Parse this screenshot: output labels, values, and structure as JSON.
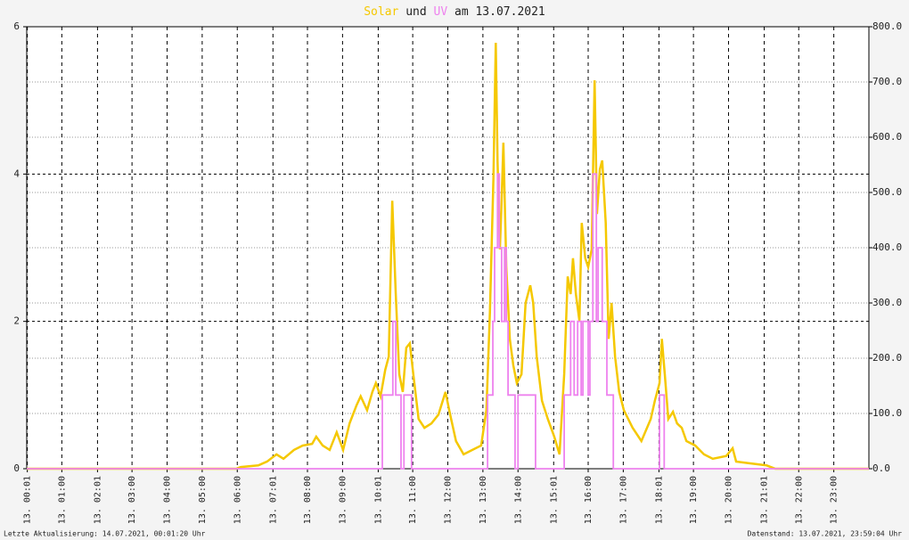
{
  "chart_data": {
    "type": "line",
    "title": {
      "parts": [
        "Solar",
        "und",
        "UV",
        "am 13.07.2021"
      ]
    },
    "footer": {
      "left": "Letzte Aktualisierung: 14.07.2021, 00:01:20 Uhr",
      "right": "Datenstand: 13.07.2021, 23:59:04 Uhr"
    },
    "xlim": [
      0,
      1440
    ],
    "xticks": [
      {
        "value": 1,
        "label": "13. 00:01"
      },
      {
        "value": 60,
        "label": "13. 01:00"
      },
      {
        "value": 121,
        "label": "13. 02:01"
      },
      {
        "value": 180,
        "label": "13. 03:00"
      },
      {
        "value": 240,
        "label": "13. 04:00"
      },
      {
        "value": 300,
        "label": "13. 05:00"
      },
      {
        "value": 360,
        "label": "13. 06:00"
      },
      {
        "value": 421,
        "label": "13. 07:01"
      },
      {
        "value": 480,
        "label": "13. 08:00"
      },
      {
        "value": 540,
        "label": "13. 09:00"
      },
      {
        "value": 601,
        "label": "13. 10:01"
      },
      {
        "value": 660,
        "label": "13. 11:00"
      },
      {
        "value": 720,
        "label": "13. 12:00"
      },
      {
        "value": 780,
        "label": "13. 13:00"
      },
      {
        "value": 840,
        "label": "13. 14:00"
      },
      {
        "value": 901,
        "label": "13. 15:01"
      },
      {
        "value": 960,
        "label": "13. 16:00"
      },
      {
        "value": 1020,
        "label": "13. 17:00"
      },
      {
        "value": 1081,
        "label": "13. 18:01"
      },
      {
        "value": 1140,
        "label": "13. 19:00"
      },
      {
        "value": 1200,
        "label": "13. 20:00"
      },
      {
        "value": 1261,
        "label": "13. 21:01"
      },
      {
        "value": 1320,
        "label": "13. 22:00"
      },
      {
        "value": 1380,
        "label": "13. 23:00"
      }
    ],
    "ylim": [
      0,
      6
    ],
    "yticks": [
      0,
      2,
      4,
      6
    ],
    "y2lim": [
      0,
      800
    ],
    "y2ticks": [
      {
        "value": 0,
        "label": "0.0"
      },
      {
        "value": 100,
        "label": "100.0"
      },
      {
        "value": 200,
        "label": "200.0"
      },
      {
        "value": 300,
        "label": "300.0"
      },
      {
        "value": 400,
        "label": "400.0"
      },
      {
        "value": 500,
        "label": "500.0"
      },
      {
        "value": 600,
        "label": "600.0"
      },
      {
        "value": 700,
        "label": "700.0"
      },
      {
        "value": 800,
        "label": "800.0"
      }
    ],
    "grid": true,
    "series": [
      {
        "name": "Solar",
        "color": "#f5c800",
        "axis": "y2",
        "x": [
          0,
          358,
          366,
          396,
          411,
          427,
          439,
          457,
          472,
          488,
          495,
          506,
          518,
          530,
          541,
          552,
          564,
          571,
          582,
          591,
          597,
          605,
          613,
          619,
          625,
          631,
          637,
          643,
          649,
          655,
          661,
          670,
          680,
          692,
          704,
          716,
          724,
          734,
          747,
          762,
          777,
          786,
          792,
          798,
          802,
          805,
          809,
          812,
          815,
          820,
          826,
          832,
          838,
          846,
          853,
          861,
          866,
          872,
          881,
          891,
          902,
          911,
          919,
          925,
          930,
          934,
          939,
          945,
          949,
          955,
          960,
          966,
          971,
          975,
          980,
          984,
          990,
          995,
          1000,
          1006,
          1013,
          1021,
          1036,
          1051,
          1067,
          1074,
          1082,
          1086,
          1091,
          1097,
          1105,
          1112,
          1120,
          1128,
          1143,
          1158,
          1173,
          1196,
          1207,
          1213,
          1234,
          1265,
          1280,
          1440
        ],
        "values": [
          0,
          0,
          3,
          6,
          13,
          26,
          18,
          34,
          42,
          45,
          58,
          42,
          34,
          66,
          34,
          82,
          115,
          131,
          106,
          139,
          155,
          131,
          179,
          203,
          485,
          316,
          171,
          139,
          219,
          227,
          171,
          90,
          74,
          82,
          98,
          139,
          98,
          50,
          26,
          34,
          42,
          106,
          284,
          526,
          771,
          558,
          397,
          485,
          590,
          365,
          235,
          187,
          155,
          171,
          300,
          332,
          300,
          203,
          123,
          90,
          58,
          26,
          171,
          348,
          316,
          381,
          316,
          268,
          445,
          381,
          365,
          397,
          703,
          461,
          542,
          558,
          445,
          235,
          300,
          203,
          139,
          106,
          74,
          50,
          90,
          123,
          155,
          235,
          171,
          90,
          103,
          82,
          74,
          50,
          42,
          26,
          18,
          23,
          37,
          13,
          10,
          6,
          0,
          0
        ]
      },
      {
        "name": "UV",
        "color": "#ee82ee",
        "axis": "y",
        "x": [
          0,
          608,
          608,
          626,
          626,
          631,
          631,
          640,
          640,
          645,
          645,
          658,
          658,
          788,
          788,
          797,
          797,
          800,
          800,
          805,
          805,
          808,
          808,
          812,
          812,
          817,
          817,
          820,
          820,
          823,
          823,
          835,
          835,
          840,
          840,
          870,
          870,
          919,
          919,
          930,
          930,
          936,
          936,
          942,
          942,
          948,
          948,
          951,
          951,
          960,
          960,
          963,
          963,
          968,
          968,
          974,
          974,
          977,
          977,
          984,
          984,
          992,
          992,
          1003,
          1003,
          1082,
          1082,
          1090,
          1090,
          1440
        ],
        "values": [
          0,
          0,
          1,
          1,
          2,
          2,
          1,
          1,
          0,
          0,
          1,
          1,
          0,
          0,
          1,
          1,
          2,
          2,
          3,
          3,
          4,
          4,
          3,
          3,
          2,
          2,
          3,
          3,
          2,
          2,
          1,
          1,
          0,
          0,
          1,
          1,
          0,
          0,
          1,
          1,
          2,
          2,
          1,
          1,
          2,
          2,
          1,
          1,
          2,
          2,
          1,
          1,
          2,
          2,
          4,
          4,
          2,
          2,
          3,
          3,
          2,
          2,
          1,
          1,
          0,
          0,
          1,
          1,
          0,
          0
        ]
      }
    ]
  }
}
